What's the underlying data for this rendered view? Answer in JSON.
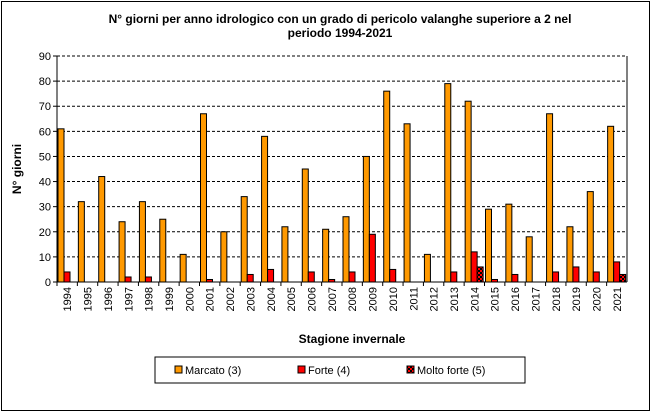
{
  "chart_data": {
    "type": "bar",
    "title": "N° giorni per anno idrologico con un grado di pericolo valanghe superiore a 2 nel periodo 1994-2021",
    "title_lines": [
      "N° giorni per anno idrologico con un grado di pericolo valanghe superiore a 2 nel",
      "periodo 1994-2021"
    ],
    "xlabel": "Stagione invernale",
    "ylabel": "N° giorni",
    "ylim": [
      0,
      90
    ],
    "yticks": [
      0,
      10,
      20,
      30,
      40,
      50,
      60,
      70,
      80,
      90
    ],
    "grid": "horizontal dashed",
    "legend_placement": "bottom",
    "categories": [
      "1994",
      "1995",
      "1996",
      "1997",
      "1998",
      "1999",
      "2000",
      "2001",
      "2002",
      "2003",
      "2004",
      "2005",
      "2006",
      "2007",
      "2008",
      "2009",
      "2010",
      "2011",
      "2012",
      "2013",
      "2014",
      "2015",
      "2016",
      "2017",
      "2018",
      "2019",
      "2020",
      "2021"
    ],
    "series": [
      {
        "name": "Marcato (3)",
        "color": "#FF9900",
        "values": [
          61,
          32,
          42,
          24,
          32,
          25,
          11,
          67,
          20,
          34,
          58,
          22,
          45,
          21,
          26,
          50,
          76,
          63,
          11,
          79,
          72,
          29,
          31,
          18,
          67,
          22,
          36,
          62
        ]
      },
      {
        "name": "Forte (4)",
        "color": "#FF0000",
        "values": [
          4,
          0,
          0,
          2,
          2,
          0,
          0,
          1,
          0,
          3,
          5,
          0,
          4,
          1,
          4,
          19,
          5,
          0,
          0,
          4,
          12,
          1,
          3,
          0,
          4,
          6,
          4,
          8
        ]
      },
      {
        "name": "Molto forte (5)",
        "color": "#FF0000",
        "pattern": "checkered black",
        "values": [
          0,
          0,
          0,
          0,
          0,
          0,
          0,
          0,
          0,
          0,
          0,
          0,
          0,
          0,
          0,
          0,
          0,
          0,
          0,
          0,
          6,
          0,
          0,
          0,
          0,
          0,
          0,
          3
        ]
      }
    ]
  }
}
